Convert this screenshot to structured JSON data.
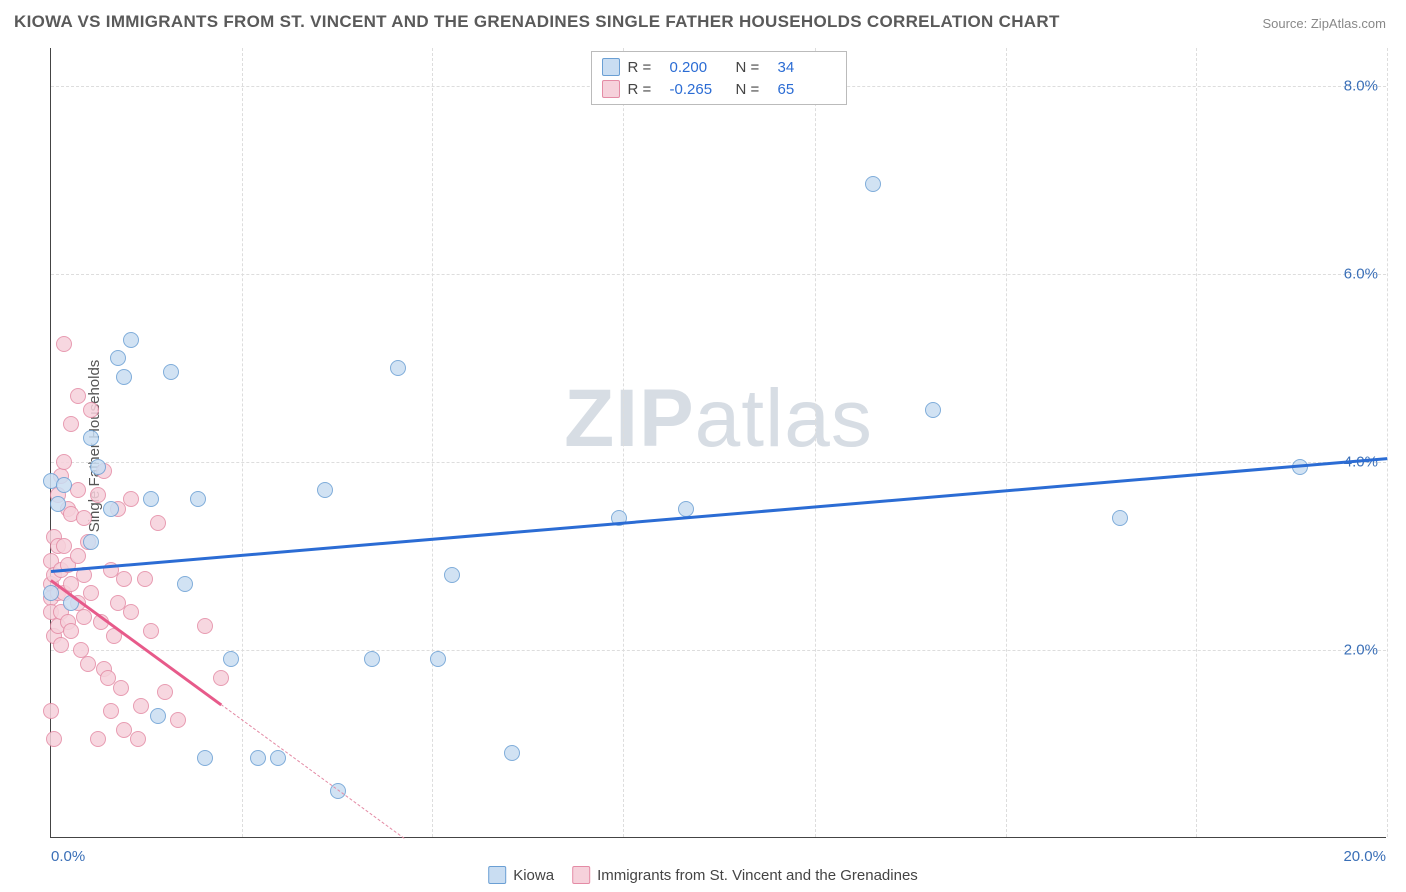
{
  "title": "KIOWA VS IMMIGRANTS FROM ST. VINCENT AND THE GRENADINES SINGLE FATHER HOUSEHOLDS CORRELATION CHART",
  "source_label": "Source: ",
  "source_value": "ZipAtlas.com",
  "ylabel": "Single Father Households",
  "watermark_bold": "ZIP",
  "watermark_rest": "atlas",
  "chart": {
    "type": "scatter",
    "xlim": [
      0,
      20
    ],
    "ylim": [
      0,
      8.4
    ],
    "xtick_labels": [
      "0.0%",
      "20.0%"
    ],
    "ytick_positions": [
      2,
      4,
      6,
      8
    ],
    "ytick_labels": [
      "2.0%",
      "4.0%",
      "6.0%",
      "8.0%"
    ],
    "xgrid_positions": [
      0,
      2.86,
      5.71,
      8.57,
      11.43,
      14.29,
      17.14,
      20
    ],
    "background_color": "#ffffff",
    "grid_color": "#e0e0e0",
    "axis_color": "#444444",
    "marker_radius": 8,
    "marker_stroke_width": 1.2,
    "series": [
      {
        "name": "Kiowa",
        "fill_color": "#c9ddf2",
        "stroke_color": "#6a9fd4",
        "line_color": "#2b6cd4",
        "r_value": "0.200",
        "n_value": "34",
        "trend": {
          "x1": 0,
          "y1": 2.85,
          "x2": 20,
          "y2": 4.05,
          "solid_to_x": 20
        },
        "points": [
          [
            0.0,
            3.8
          ],
          [
            0.0,
            2.6
          ],
          [
            0.1,
            3.55
          ],
          [
            0.2,
            3.75
          ],
          [
            0.3,
            2.5
          ],
          [
            0.6,
            3.15
          ],
          [
            0.6,
            4.25
          ],
          [
            0.7,
            3.95
          ],
          [
            0.9,
            3.5
          ],
          [
            1.0,
            5.1
          ],
          [
            1.1,
            4.9
          ],
          [
            1.2,
            5.3
          ],
          [
            1.5,
            3.6
          ],
          [
            1.6,
            1.3
          ],
          [
            1.8,
            4.95
          ],
          [
            2.0,
            2.7
          ],
          [
            2.2,
            3.6
          ],
          [
            2.3,
            0.85
          ],
          [
            2.7,
            1.9
          ],
          [
            3.1,
            0.85
          ],
          [
            3.4,
            0.85
          ],
          [
            4.1,
            3.7
          ],
          [
            4.3,
            0.5
          ],
          [
            4.8,
            1.9
          ],
          [
            5.2,
            5.0
          ],
          [
            5.8,
            1.9
          ],
          [
            6.0,
            2.8
          ],
          [
            6.9,
            0.9
          ],
          [
            8.5,
            3.4
          ],
          [
            9.5,
            3.5
          ],
          [
            12.3,
            6.95
          ],
          [
            13.2,
            4.55
          ],
          [
            16.0,
            3.4
          ],
          [
            18.7,
            3.95
          ]
        ]
      },
      {
        "name": "Immigrants from St. Vincent and the Grenadines",
        "fill_color": "#f6d1db",
        "stroke_color": "#e48ba5",
        "line_color": "#e75a8a",
        "r_value": "-0.265",
        "n_value": "65",
        "trend": {
          "x1": 0,
          "y1": 2.75,
          "x2": 5.3,
          "y2": 0.0,
          "solid_to_x": 2.55
        },
        "points": [
          [
            0.0,
            2.95
          ],
          [
            0.0,
            2.7
          ],
          [
            0.0,
            2.55
          ],
          [
            0.0,
            2.4
          ],
          [
            0.0,
            1.35
          ],
          [
            0.05,
            3.2
          ],
          [
            0.05,
            2.8
          ],
          [
            0.05,
            2.15
          ],
          [
            0.05,
            1.05
          ],
          [
            0.1,
            3.65
          ],
          [
            0.1,
            3.1
          ],
          [
            0.1,
            2.6
          ],
          [
            0.1,
            2.25
          ],
          [
            0.15,
            3.85
          ],
          [
            0.15,
            2.85
          ],
          [
            0.15,
            2.4
          ],
          [
            0.15,
            2.05
          ],
          [
            0.2,
            5.25
          ],
          [
            0.2,
            4.0
          ],
          [
            0.2,
            3.1
          ],
          [
            0.2,
            2.6
          ],
          [
            0.25,
            3.5
          ],
          [
            0.25,
            2.9
          ],
          [
            0.25,
            2.3
          ],
          [
            0.3,
            4.4
          ],
          [
            0.3,
            3.45
          ],
          [
            0.3,
            2.7
          ],
          [
            0.3,
            2.2
          ],
          [
            0.4,
            4.7
          ],
          [
            0.4,
            3.7
          ],
          [
            0.4,
            3.0
          ],
          [
            0.4,
            2.5
          ],
          [
            0.45,
            2.0
          ],
          [
            0.5,
            3.4
          ],
          [
            0.5,
            2.8
          ],
          [
            0.5,
            2.35
          ],
          [
            0.55,
            3.15
          ],
          [
            0.55,
            1.85
          ],
          [
            0.6,
            4.55
          ],
          [
            0.6,
            2.6
          ],
          [
            0.7,
            3.65
          ],
          [
            0.7,
            1.05
          ],
          [
            0.75,
            2.3
          ],
          [
            0.8,
            3.9
          ],
          [
            0.8,
            1.8
          ],
          [
            0.85,
            1.7
          ],
          [
            0.9,
            2.85
          ],
          [
            0.9,
            1.35
          ],
          [
            0.95,
            2.15
          ],
          [
            1.0,
            3.5
          ],
          [
            1.0,
            2.5
          ],
          [
            1.05,
            1.6
          ],
          [
            1.1,
            2.75
          ],
          [
            1.1,
            1.15
          ],
          [
            1.2,
            3.6
          ],
          [
            1.2,
            2.4
          ],
          [
            1.3,
            1.05
          ],
          [
            1.35,
            1.4
          ],
          [
            1.4,
            2.75
          ],
          [
            1.5,
            2.2
          ],
          [
            1.6,
            3.35
          ],
          [
            1.7,
            1.55
          ],
          [
            1.9,
            1.25
          ],
          [
            2.3,
            2.25
          ],
          [
            2.55,
            1.7
          ]
        ]
      }
    ]
  },
  "legend_top": {
    "r_label": "R  =",
    "n_label": "N  ="
  },
  "legend_bottom_labels": [
    "Kiowa",
    "Immigrants from St. Vincent and the Grenadines"
  ]
}
